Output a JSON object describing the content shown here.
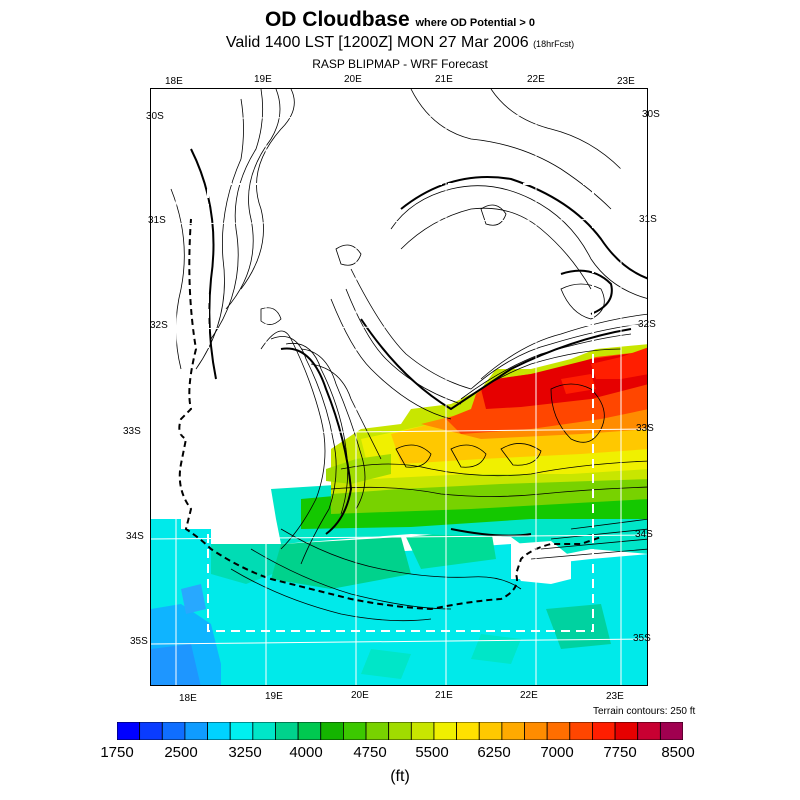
{
  "title": {
    "main": "OD Cloudbase",
    "qualifier": "where OD Potential > 0",
    "valid": "Valid 1400 LST [1200Z] MON 27 Mar 2006",
    "forecast": "(18hrFcst)",
    "source": "RASP BLIPMAP - WRF Forecast"
  },
  "map": {
    "top_lon_labels": [
      "18E",
      "19E",
      "20E",
      "21E",
      "22E",
      "23E"
    ],
    "bottom_lon_labels": [
      "18E",
      "19E",
      "20E",
      "21E",
      "22E",
      "23E"
    ],
    "left_lat_labels": [
      "30S",
      "31S",
      "32S",
      "33S",
      "34S",
      "35S"
    ],
    "right_lat_labels": [
      "30S",
      "31S",
      "32S",
      "33S",
      "34S",
      "35S"
    ],
    "terrain_note": "Terrain contours: 250 ft"
  },
  "colorbar": {
    "labels": [
      "1750",
      "2500",
      "3250",
      "4000",
      "4750",
      "5500",
      "6250",
      "7000",
      "7750",
      "8500"
    ],
    "units": "(ft)",
    "colors": [
      "#0000ff",
      "#0a3cff",
      "#0f6eff",
      "#0f9cff",
      "#00d2ff",
      "#00f0f0",
      "#00e6c8",
      "#00d28c",
      "#00c850",
      "#14b400",
      "#3cc800",
      "#78d200",
      "#a0dc00",
      "#c8e600",
      "#f0f000",
      "#ffe100",
      "#ffc800",
      "#ffaa00",
      "#ff8c00",
      "#ff6e00",
      "#ff4600",
      "#ff1e00",
      "#e60000",
      "#c80032",
      "#a00050"
    ]
  }
}
